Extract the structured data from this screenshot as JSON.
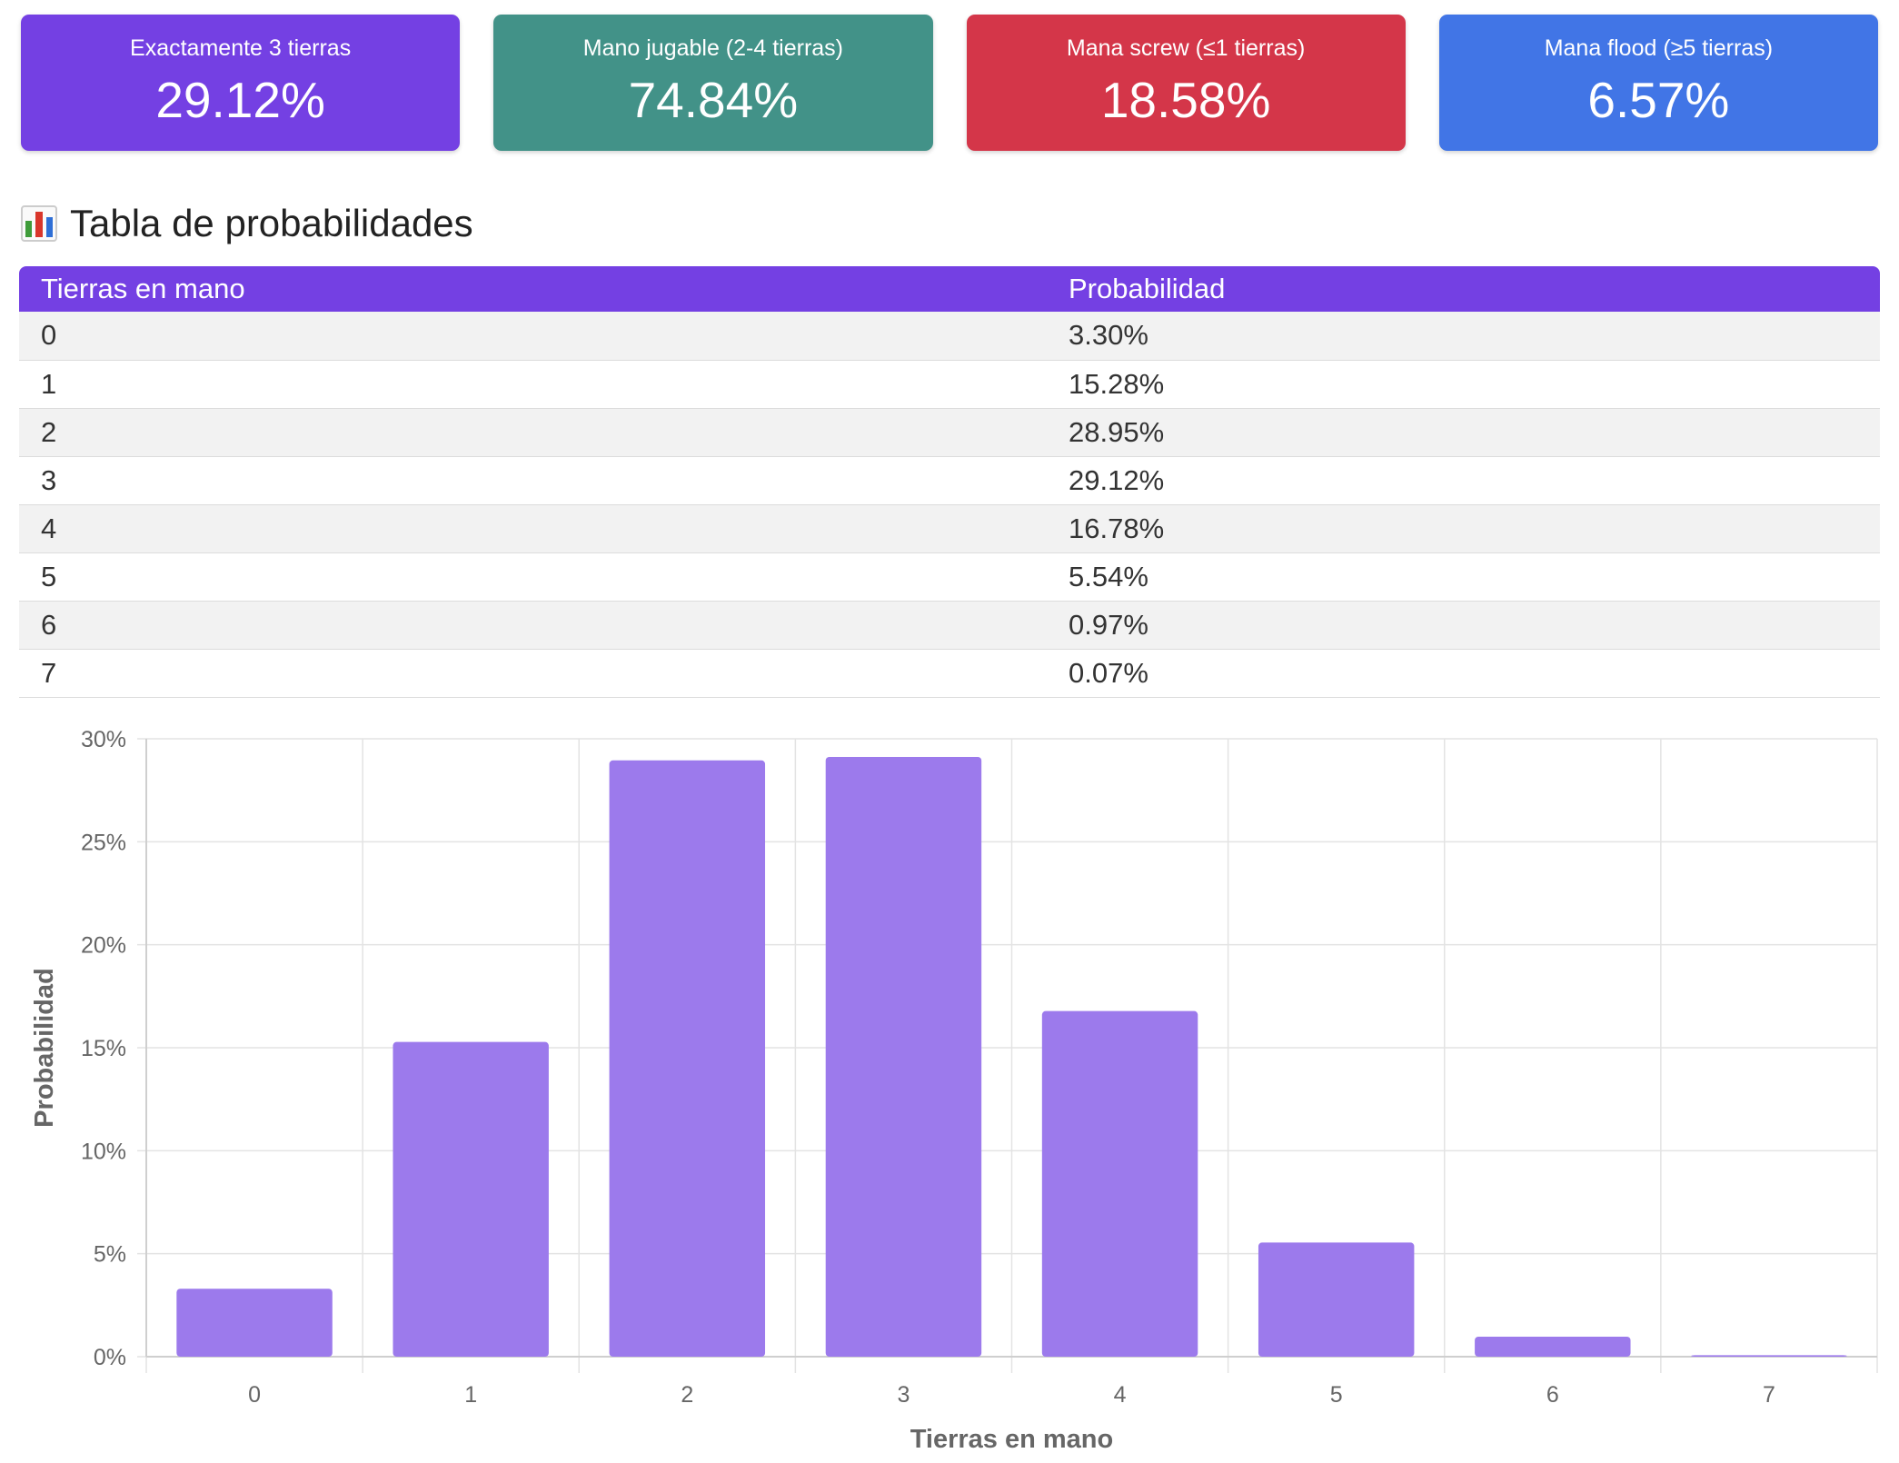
{
  "cards": [
    {
      "label": "Exactamente 3 tierras",
      "value": "29.12%",
      "color": "#7440e3"
    },
    {
      "label": "Mano jugable (2-4 tierras)",
      "value": "74.84%",
      "color": "#429288"
    },
    {
      "label": "Mana screw (≤1 tierras)",
      "value": "18.58%",
      "color": "#d43649"
    },
    {
      "label": "Mana flood (≥5 tierras)",
      "value": "6.57%",
      "color": "#4175e6"
    }
  ],
  "section": {
    "title": "Tabla de probabilidades",
    "icon": "bar-chart-icon"
  },
  "table": {
    "headers": [
      "Tierras en mano",
      "Probabilidad"
    ],
    "rows": [
      [
        "0",
        "3.30%"
      ],
      [
        "1",
        "15.28%"
      ],
      [
        "2",
        "28.95%"
      ],
      [
        "3",
        "29.12%"
      ],
      [
        "4",
        "16.78%"
      ],
      [
        "5",
        "5.54%"
      ],
      [
        "6",
        "0.97%"
      ],
      [
        "7",
        "0.07%"
      ]
    ]
  },
  "chart_data": {
    "type": "bar",
    "categories": [
      "0",
      "1",
      "2",
      "3",
      "4",
      "5",
      "6",
      "7"
    ],
    "values": [
      3.3,
      15.28,
      28.95,
      29.12,
      16.78,
      5.54,
      0.97,
      0.07
    ],
    "xlabel": "Tierras en mano",
    "ylabel": "Probabilidad",
    "ylim": [
      0,
      30
    ],
    "yticks": [
      "0%",
      "5%",
      "10%",
      "15%",
      "20%",
      "25%",
      "30%"
    ],
    "ytick_values": [
      0,
      5,
      10,
      15,
      20,
      25,
      30
    ],
    "bar_color": "#9c7aec",
    "grid": true,
    "legend": "none"
  }
}
